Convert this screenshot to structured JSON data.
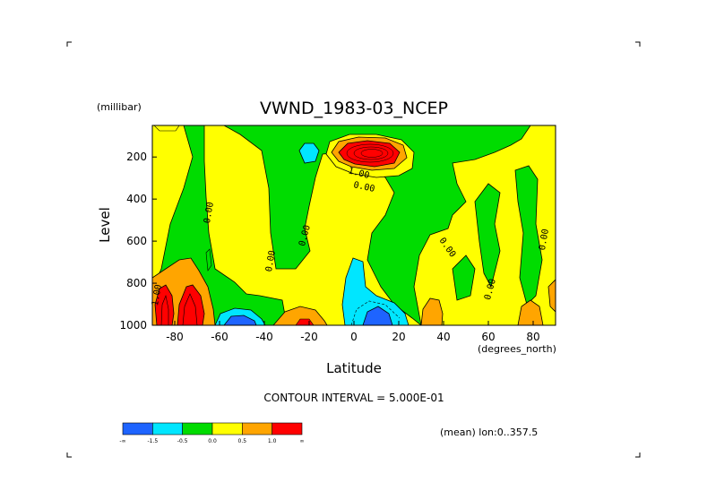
{
  "chart_data": {
    "type": "heatmap",
    "title": "VWND_1983-03_NCEP",
    "xlabel": "Latitude",
    "x_units": "(degrees_north)",
    "ylabel": "Level",
    "y_units": "(millibar)",
    "xlim": [
      -90,
      90
    ],
    "ylim": [
      1000,
      50
    ],
    "x_ticks": [
      "-80",
      "-60",
      "-40",
      "-20",
      "0",
      "20",
      "40",
      "60",
      "80"
    ],
    "y_ticks": [
      "200",
      "400",
      "600",
      "800",
      "1000"
    ],
    "contour_interval_text": "CONTOUR INTERVAL = 5.000E-01",
    "mean_note": "(mean) lon:0..357.5",
    "contour_labels": [
      {
        "text": "1.00",
        "lat": 3,
        "level": 235
      },
      {
        "text": "0.00",
        "lat": 7,
        "level": 300
      },
      {
        "text": "0.00",
        "lat": -63,
        "level": 450
      },
      {
        "text": "0.00",
        "lat": -19,
        "level": 600
      },
      {
        "text": "0.00",
        "lat": -37,
        "level": 720
      },
      {
        "text": "0.00",
        "lat": 43,
        "level": 660
      },
      {
        "text": "0.00",
        "lat": 88,
        "level": 600
      },
      {
        "text": "0.00",
        "lat": 63,
        "level": 880
      },
      {
        "text": "1.00",
        "lat": -87,
        "level": 850
      }
    ],
    "colorbar": {
      "labels": [
        "-∞",
        "-1.5",
        "-0.5",
        "0.0",
        "0.5",
        "1.0",
        "∞"
      ],
      "colors": [
        "#1e64ff",
        "#00e6ff",
        "#00dc00",
        "#ffff00",
        "#ffa500",
        "#ff0000"
      ]
    }
  }
}
